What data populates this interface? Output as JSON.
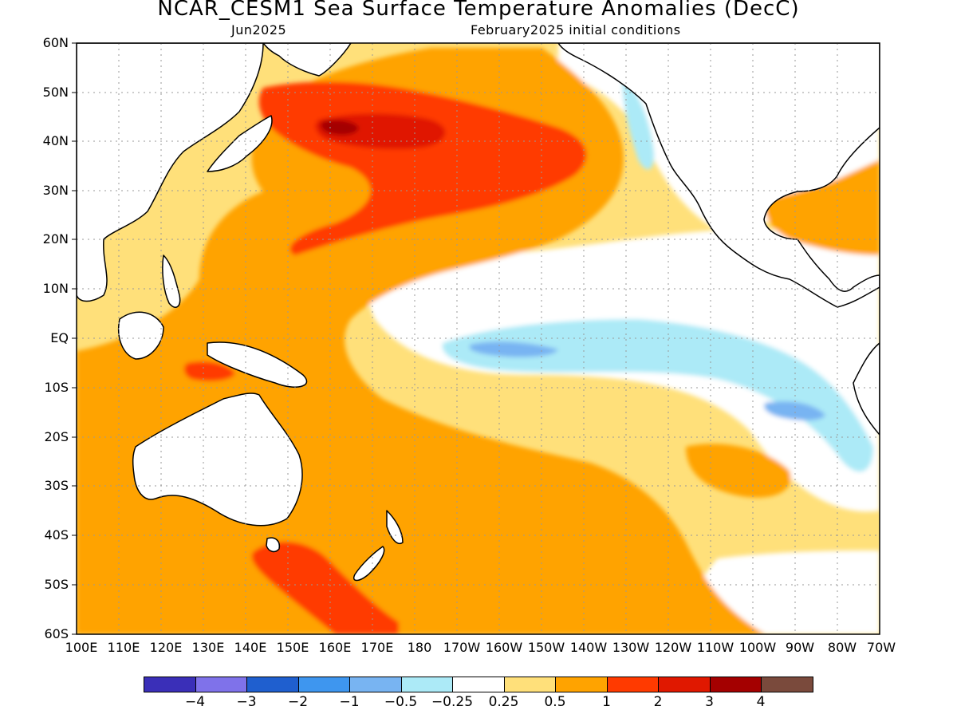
{
  "title": "NCAR_CESM1 Sea Surface Temperature Anomalies (DecC)",
  "subtitle_left": "Jun2025",
  "subtitle_right": "February2025 initial conditions",
  "lat_labels": [
    "60N",
    "50N",
    "40N",
    "30N",
    "20N",
    "10N",
    "EQ",
    "10S",
    "20S",
    "30S",
    "40S",
    "50S",
    "60S"
  ],
  "lon_labels": [
    "100E",
    "110E",
    "120E",
    "130E",
    "140E",
    "150E",
    "160E",
    "170E",
    "180",
    "170W",
    "160W",
    "150W",
    "140W",
    "130W",
    "120W",
    "110W",
    "100W",
    "90W",
    "80W",
    "70W"
  ],
  "colorbar": {
    "colors": [
      "#3a2fb8",
      "#7f72ea",
      "#1f5fcf",
      "#3e96ef",
      "#78b4f2",
      "#aceaf7",
      "#ffffff",
      "#ffe07a",
      "#ffa300",
      "#ff3a00",
      "#e01800",
      "#a40000",
      "#7a4a3c"
    ],
    "labels": [
      "−4",
      "−3",
      "−2",
      "−1",
      "−0.5",
      "−0.25",
      "0.25",
      "0.5",
      "1",
      "2",
      "3",
      "4"
    ]
  },
  "colors": {
    "land": "#ffffff",
    "grid": "#999999"
  }
}
